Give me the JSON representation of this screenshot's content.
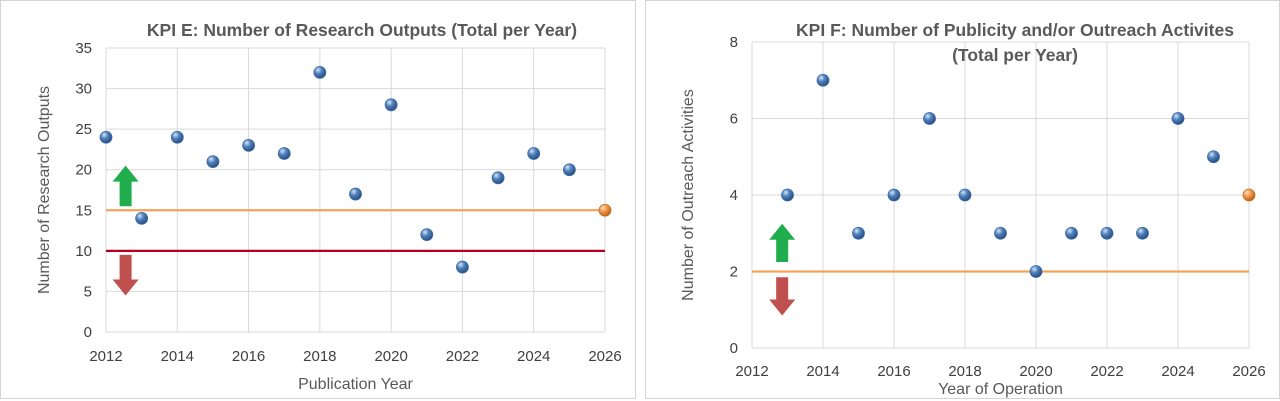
{
  "colors": {
    "point_fill": "#4f81bd",
    "last_point_fill": "#f79646",
    "orange_line": "#f4a35b",
    "red_line": "#b4001e",
    "up_arrow": "#1fae4b",
    "down_arrow": "#c0504d",
    "grid": "#d9d9d9",
    "text": "#595959"
  },
  "chart_data": [
    {
      "type": "scatter",
      "title": "KPI E: Number of Research Outputs (Total per Year)",
      "xlabel": "Publication Year",
      "ylabel": "Number of Research Outputs",
      "xlim": [
        2012,
        2026
      ],
      "ylim": [
        0,
        35
      ],
      "xticks": [
        2012,
        2014,
        2016,
        2018,
        2020,
        2022,
        2024,
        2026
      ],
      "yticks": [
        0,
        5,
        10,
        15,
        20,
        25,
        30,
        35
      ],
      "grid": true,
      "points": [
        {
          "x": 2012,
          "y": 24
        },
        {
          "x": 2013,
          "y": 14
        },
        {
          "x": 2014,
          "y": 24
        },
        {
          "x": 2015,
          "y": 21
        },
        {
          "x": 2016,
          "y": 23
        },
        {
          "x": 2017,
          "y": 22
        },
        {
          "x": 2018,
          "y": 32
        },
        {
          "x": 2019,
          "y": 17
        },
        {
          "x": 2020,
          "y": 28
        },
        {
          "x": 2021,
          "y": 12
        },
        {
          "x": 2022,
          "y": 8
        },
        {
          "x": 2023,
          "y": 19
        },
        {
          "x": 2024,
          "y": 22
        },
        {
          "x": 2025,
          "y": 20
        },
        {
          "x": 2026,
          "y": 15
        }
      ],
      "highlight_last_point": true,
      "reference_lines": [
        {
          "y": 15,
          "color": "orange"
        },
        {
          "y": 10,
          "color": "red"
        }
      ],
      "arrows": [
        {
          "direction": "up",
          "x": 2012.55,
          "y_from": 15.5,
          "y_to": 20.5,
          "color": "green"
        },
        {
          "direction": "down",
          "x": 2012.55,
          "y_from": 9.5,
          "y_to": 4.5,
          "color": "red"
        }
      ]
    },
    {
      "type": "scatter",
      "title": "KPI F: Number of Publicity and/or Outreach Activites (Total per Year)",
      "title_lines": [
        "KPI F: Number of Publicity and/or Outreach Activites",
        "(Total per Year)"
      ],
      "xlabel": "Year of Operation",
      "ylabel": "Number of Outreach Activities",
      "xlim": [
        2012,
        2026
      ],
      "ylim": [
        0,
        8
      ],
      "xticks": [
        2012,
        2014,
        2016,
        2018,
        2020,
        2022,
        2024,
        2026
      ],
      "yticks": [
        0,
        2,
        4,
        6,
        8
      ],
      "grid": true,
      "points": [
        {
          "x": 2013,
          "y": 4
        },
        {
          "x": 2014,
          "y": 7
        },
        {
          "x": 2015,
          "y": 3
        },
        {
          "x": 2016,
          "y": 4
        },
        {
          "x": 2017,
          "y": 6
        },
        {
          "x": 2018,
          "y": 4
        },
        {
          "x": 2019,
          "y": 3
        },
        {
          "x": 2020,
          "y": 2
        },
        {
          "x": 2021,
          "y": 3
        },
        {
          "x": 2022,
          "y": 3
        },
        {
          "x": 2023,
          "y": 3
        },
        {
          "x": 2024,
          "y": 6
        },
        {
          "x": 2025,
          "y": 5
        },
        {
          "x": 2026,
          "y": 4
        }
      ],
      "highlight_last_point": true,
      "reference_lines": [
        {
          "y": 2,
          "color": "orange"
        }
      ],
      "arrows": [
        {
          "direction": "up",
          "x": 2012.85,
          "y_from": 2.25,
          "y_to": 3.25,
          "color": "green"
        },
        {
          "direction": "down",
          "x": 2012.85,
          "y_from": 1.85,
          "y_to": 0.85,
          "color": "red"
        }
      ]
    }
  ]
}
